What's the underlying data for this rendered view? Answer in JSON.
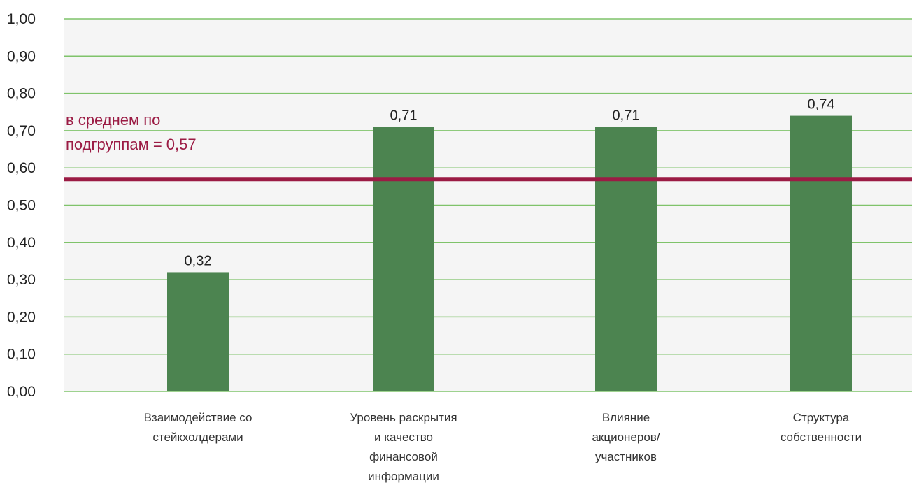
{
  "chart_data": {
    "type": "bar",
    "categories": [
      [
        "Взаимодействие со",
        "стейкхолдерами"
      ],
      [
        "Уровень раскрытия",
        "и качество",
        "финансовой",
        "информации"
      ],
      [
        "Влияние",
        "акционеров/",
        "участников"
      ],
      [
        "Структура",
        "собственности"
      ]
    ],
    "values": [
      0.32,
      0.71,
      0.71,
      0.74
    ],
    "value_labels": [
      "0,32",
      "0,71",
      "0,71",
      "0,74"
    ],
    "ylim": [
      0,
      1
    ],
    "yticks": [
      0.0,
      0.1,
      0.2,
      0.3,
      0.4,
      0.5,
      0.6,
      0.7,
      0.8,
      0.9,
      1.0
    ],
    "ytick_labels": [
      "0,00",
      "0,10",
      "0,20",
      "0,30",
      "0,40",
      "0,50",
      "0,60",
      "0,70",
      "0,80",
      "0,90",
      "1,00"
    ],
    "grid": true,
    "legend": "none",
    "reference_line": {
      "value": 0.57,
      "label_lines": [
        "в среднем по",
        "подгруппам = 0,57"
      ]
    },
    "colors": {
      "bar": "#4c8450",
      "grid": "#7fc36a",
      "plot_background": "#f5f5f5",
      "reference_line": "#9b1b44"
    }
  }
}
